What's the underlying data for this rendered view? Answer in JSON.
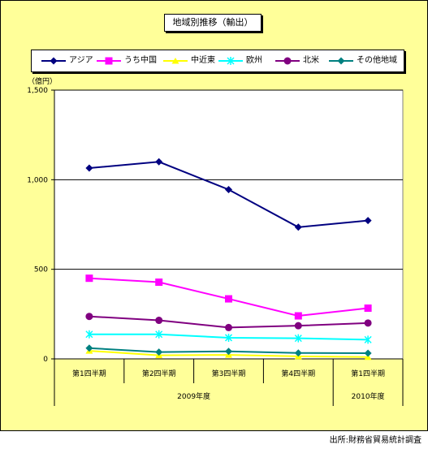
{
  "chart_data": {
    "type": "line",
    "title": "地域別推移（輸出）",
    "ylabel": "（億円）",
    "xlabel": "",
    "ylim": [
      0,
      1500
    ],
    "yticks": [
      "0",
      "500",
      "1,000",
      "1,500"
    ],
    "categories": [
      "第1四半期",
      "第2四半期",
      "第3四半期",
      "第4四半期",
      "第1四半期"
    ],
    "year_groups": [
      {
        "label": "2009年度",
        "count": 4
      },
      {
        "label": "2010年度",
        "count": 1
      }
    ],
    "grid": true,
    "legend_position": "top",
    "series": [
      {
        "name": "アジア",
        "values": [
          1065,
          1100,
          945,
          735,
          772
        ],
        "color": "#000080",
        "marker": "diamond"
      },
      {
        "name": "うち中国",
        "values": [
          450,
          428,
          335,
          240,
          283
        ],
        "color": "#ff00ff",
        "marker": "square"
      },
      {
        "name": "中近東",
        "values": [
          45,
          20,
          22,
          14,
          10
        ],
        "color": "#ffff00",
        "marker": "triangle"
      },
      {
        "name": "欧州",
        "values": [
          137,
          137,
          118,
          115,
          107
        ],
        "color": "#00ffff",
        "marker": "x"
      },
      {
        "name": "北米",
        "values": [
          237,
          215,
          175,
          185,
          200
        ],
        "color": "#800080",
        "marker": "circle"
      },
      {
        "name": "その他地域",
        "values": [
          60,
          38,
          42,
          33,
          32
        ],
        "color": "#008080",
        "marker": "diamond"
      }
    ]
  },
  "source_note": "出所:財務省貿易統計調査"
}
